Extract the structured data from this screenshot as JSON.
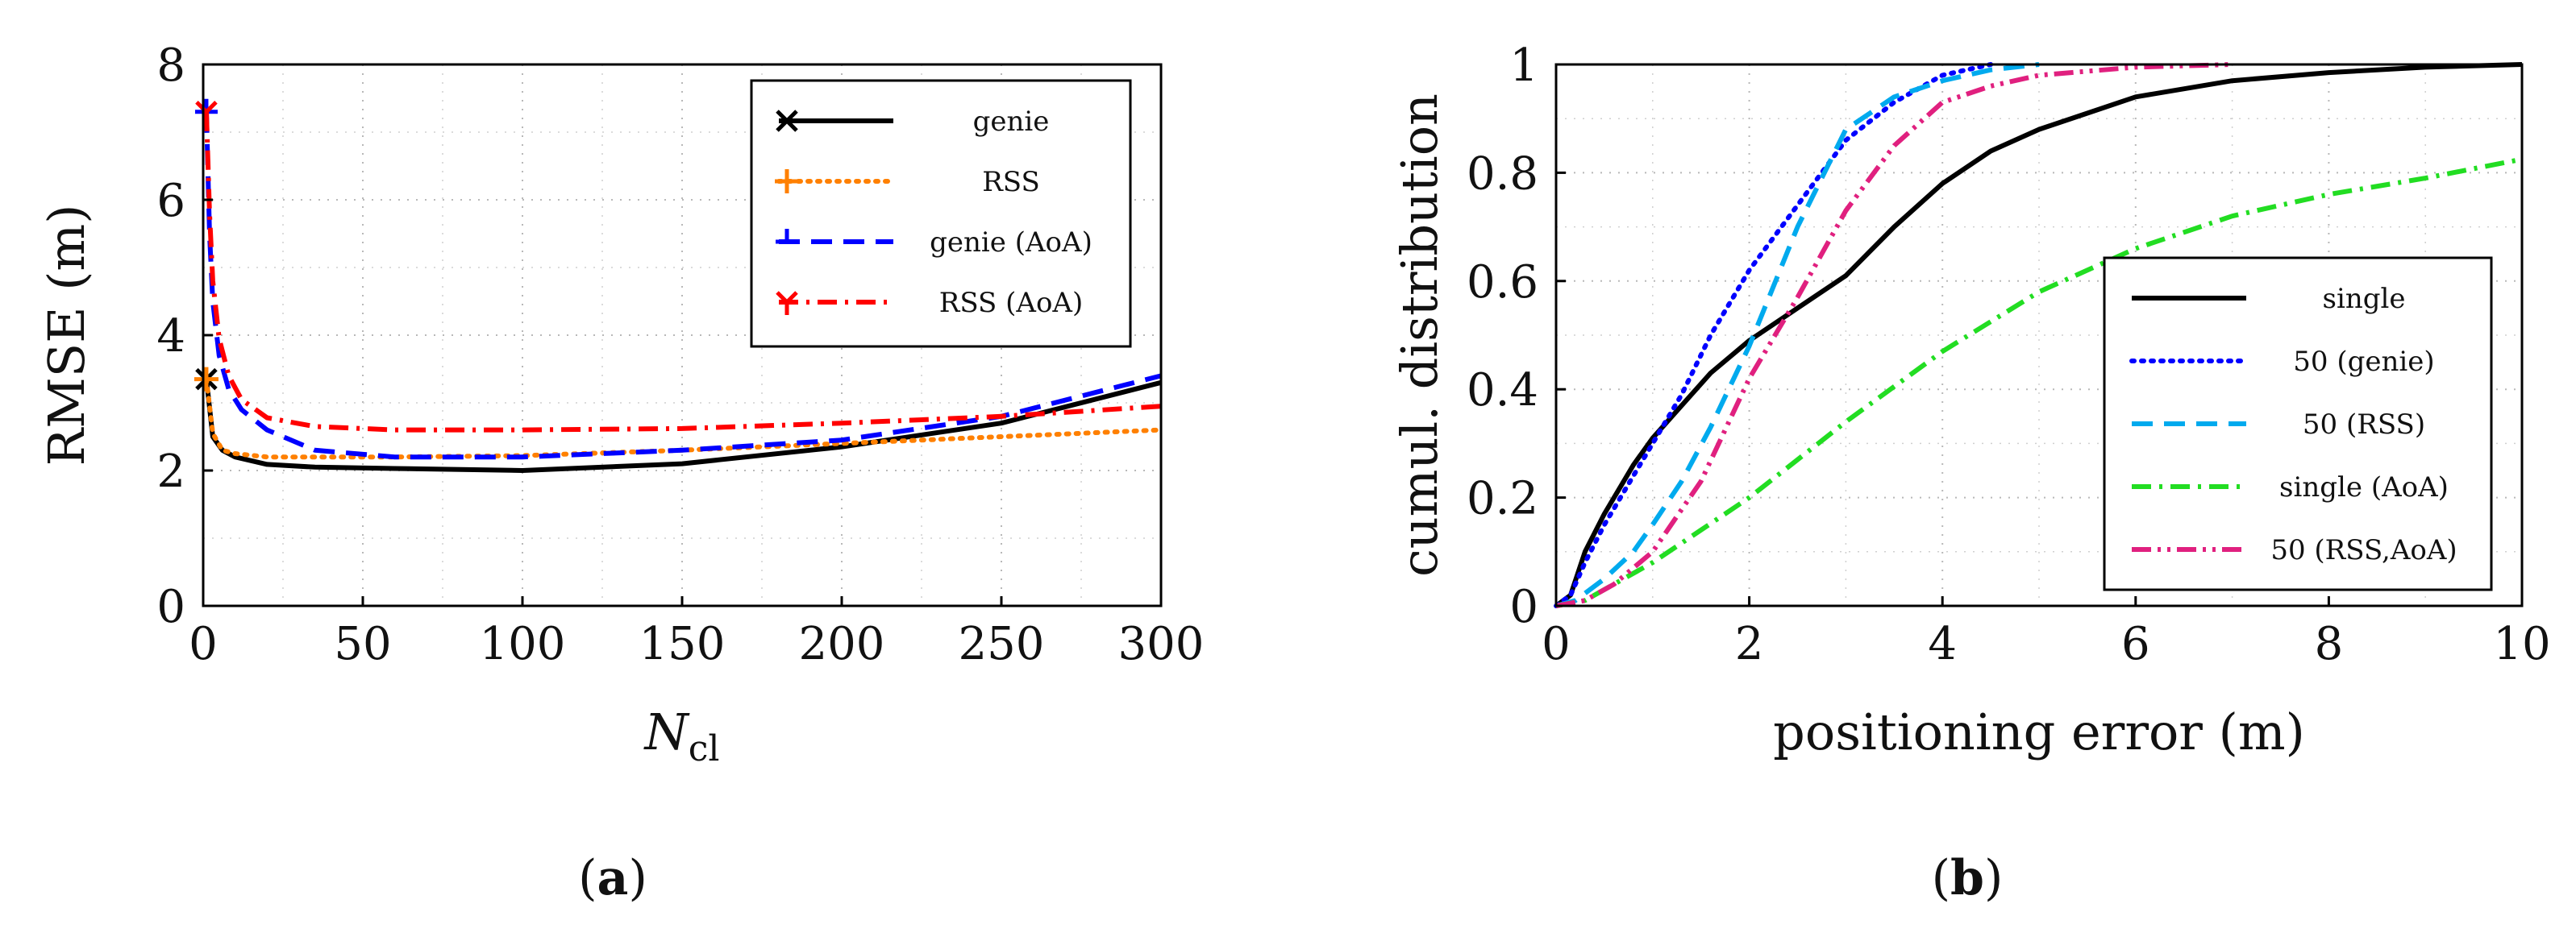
{
  "chart_data": [
    {
      "type": "line",
      "panel": "a",
      "caption_letter": "a",
      "xlabel_main": "N",
      "xlabel_sub": "cl",
      "ylabel": "RMSE (m)",
      "xlim": [
        0,
        300
      ],
      "ylim": [
        0,
        8
      ],
      "xticks": [
        0,
        50,
        100,
        150,
        200,
        250,
        300
      ],
      "yticks": [
        0,
        2,
        4,
        6,
        8
      ],
      "grid": true,
      "legend_position": "top-right",
      "series": [
        {
          "name": "genie",
          "color": "#000000",
          "dash": "solid",
          "marker": "x",
          "x": [
            1,
            3,
            6,
            10,
            20,
            35,
            60,
            100,
            150,
            200,
            250,
            300
          ],
          "y": [
            3.35,
            2.5,
            2.3,
            2.2,
            2.09,
            2.05,
            2.03,
            2.0,
            2.1,
            2.35,
            2.7,
            3.3
          ]
        },
        {
          "name": "RSS",
          "color": "#ff8000",
          "dash": "dotted",
          "marker": "+",
          "x": [
            1,
            3,
            6,
            10,
            20,
            35,
            60,
            100,
            150,
            200,
            250,
            300
          ],
          "y": [
            3.35,
            2.55,
            2.3,
            2.25,
            2.2,
            2.2,
            2.2,
            2.22,
            2.3,
            2.4,
            2.5,
            2.6
          ]
        },
        {
          "name": "genie (AoA)",
          "color": "#0000ff",
          "dash": "dashed",
          "marker": "tri",
          "x": [
            1,
            2,
            3,
            5,
            8,
            12,
            20,
            35,
            60,
            100,
            150,
            200,
            250,
            300
          ],
          "y": [
            7.3,
            5.5,
            4.5,
            3.7,
            3.2,
            2.9,
            2.6,
            2.3,
            2.2,
            2.2,
            2.3,
            2.45,
            2.8,
            3.4
          ]
        },
        {
          "name": "RSS (AoA)",
          "color": "#ff0000",
          "dash": "dashdot",
          "marker": "Y",
          "x": [
            1,
            2,
            3,
            5,
            8,
            12,
            20,
            35,
            60,
            100,
            150,
            200,
            250,
            300
          ],
          "y": [
            7.3,
            5.8,
            4.8,
            3.95,
            3.4,
            3.05,
            2.78,
            2.65,
            2.6,
            2.6,
            2.62,
            2.7,
            2.8,
            2.95
          ]
        }
      ]
    },
    {
      "type": "line",
      "panel": "b",
      "caption_letter": "b",
      "xlabel": "positioning error (m)",
      "ylabel": "cumul. distribution",
      "xlim": [
        0,
        10
      ],
      "ylim": [
        0,
        1
      ],
      "xticks": [
        0,
        2,
        4,
        6,
        8,
        10
      ],
      "yticks": [
        0,
        0.2,
        0.4,
        0.6,
        0.8,
        1
      ],
      "grid": true,
      "legend_position": "bottom-right",
      "series": [
        {
          "name": "single",
          "color": "#000000",
          "dash": "solid",
          "x": [
            0,
            0.15,
            0.3,
            0.5,
            0.8,
            1.0,
            1.3,
            1.6,
            2.0,
            2.5,
            3.0,
            3.5,
            4.0,
            4.5,
            5.0,
            5.5,
            6.0,
            7.0,
            8.0,
            9.0,
            10.0
          ],
          "y": [
            0,
            0.02,
            0.1,
            0.17,
            0.26,
            0.31,
            0.37,
            0.43,
            0.49,
            0.55,
            0.61,
            0.7,
            0.78,
            0.84,
            0.88,
            0.91,
            0.94,
            0.97,
            0.985,
            0.995,
            1.0
          ]
        },
        {
          "name": "50 (genie)",
          "color": "#0000ff",
          "dash": "dotted",
          "x": [
            0,
            0.15,
            0.3,
            0.5,
            0.8,
            1.0,
            1.3,
            1.6,
            2.0,
            2.5,
            3.0,
            3.5,
            4.0,
            4.5
          ],
          "y": [
            0,
            0.02,
            0.08,
            0.15,
            0.24,
            0.3,
            0.39,
            0.5,
            0.62,
            0.74,
            0.86,
            0.93,
            0.98,
            1.0
          ]
        },
        {
          "name": "50 (RSS)",
          "color": "#00aaee",
          "dash": "dashed",
          "x": [
            0,
            0.2,
            0.5,
            0.8,
            1.0,
            1.3,
            1.6,
            2.0,
            2.5,
            3.0,
            3.5,
            4.0,
            4.5,
            5.0
          ],
          "y": [
            0,
            0.01,
            0.05,
            0.1,
            0.15,
            0.23,
            0.33,
            0.48,
            0.7,
            0.88,
            0.94,
            0.97,
            0.99,
            1.0
          ]
        },
        {
          "name": "single (AoA)",
          "color": "#22dd22",
          "dash": "dashdot",
          "x": [
            0,
            0.3,
            0.5,
            1.0,
            1.5,
            2.0,
            3.0,
            4.0,
            5.0,
            6.0,
            7.0,
            8.0,
            9.0,
            10.0
          ],
          "y": [
            0,
            0.01,
            0.03,
            0.08,
            0.14,
            0.2,
            0.34,
            0.47,
            0.58,
            0.66,
            0.72,
            0.76,
            0.79,
            0.825
          ]
        },
        {
          "name": "50 (RSS,AoA)",
          "color": "#e0207f",
          "dash": "dashdotdot",
          "x": [
            0,
            0.3,
            0.6,
            1.0,
            1.5,
            2.0,
            2.5,
            3.0,
            3.5,
            4.0,
            4.5,
            5.0,
            6.0,
            7.0
          ],
          "y": [
            0,
            0.01,
            0.04,
            0.1,
            0.23,
            0.42,
            0.57,
            0.73,
            0.85,
            0.93,
            0.96,
            0.98,
            0.995,
            1.0
          ]
        }
      ]
    }
  ]
}
